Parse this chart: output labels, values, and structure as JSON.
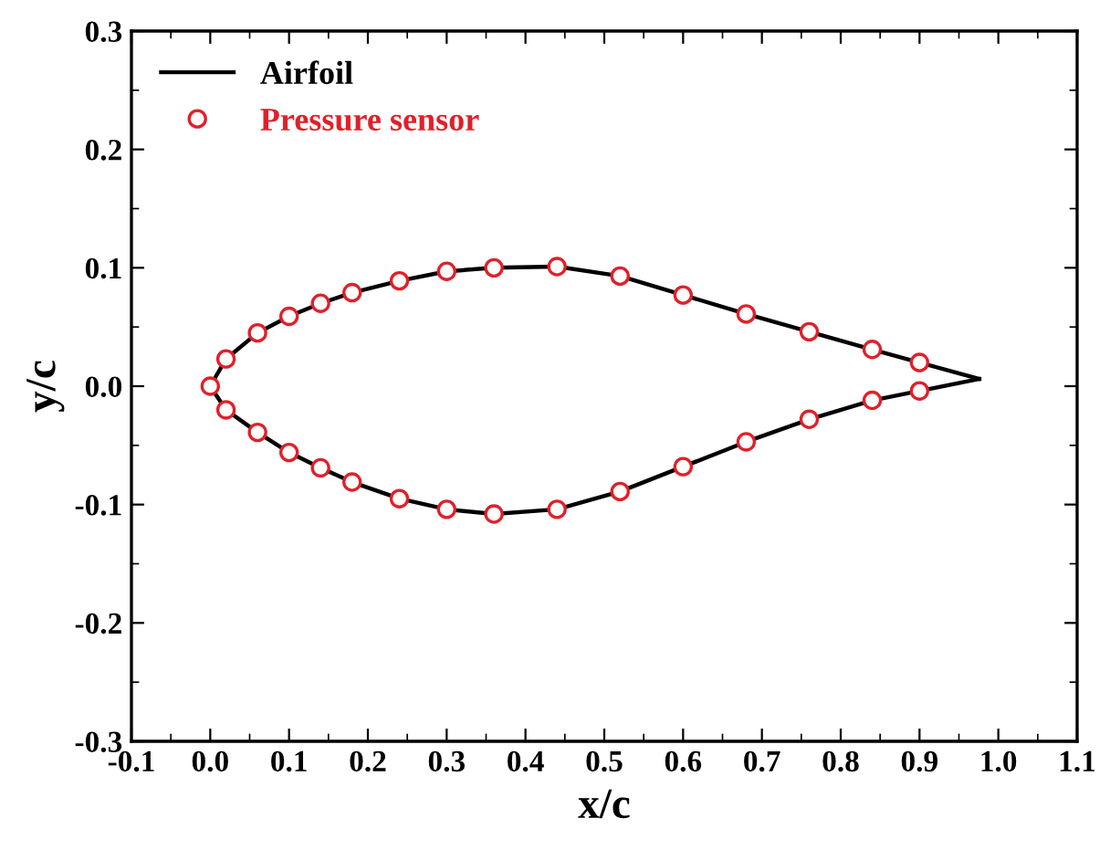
{
  "chart_data": {
    "type": "line",
    "xlabel": "x/c",
    "ylabel": "y/c",
    "legend": "top left",
    "grid": false,
    "xlim": [
      -0.1,
      1.1
    ],
    "ylim": [
      -0.3,
      0.3
    ],
    "xticks": [
      {
        "value": -0.1,
        "label": "-0.1"
      },
      {
        "value": 0,
        "label": "0.0"
      },
      {
        "value": 0.1,
        "label": "0.1"
      },
      {
        "value": 0.2,
        "label": "0.2"
      },
      {
        "value": 0.3,
        "label": "0.3"
      },
      {
        "value": 0.4,
        "label": "0.4"
      },
      {
        "value": 0.5,
        "label": "0.5"
      },
      {
        "value": 0.6,
        "label": "0.6"
      },
      {
        "value": 0.7,
        "label": "0.7"
      },
      {
        "value": 0.8,
        "label": "0.8"
      },
      {
        "value": 0.9,
        "label": "0.9"
      },
      {
        "value": 1.0,
        "label": "1.0"
      },
      {
        "value": 1.1,
        "label": "1.1"
      }
    ],
    "yticks": [
      {
        "value": -0.3,
        "label": "-0.3"
      },
      {
        "value": -0.2,
        "label": "-0.2"
      },
      {
        "value": -0.1,
        "label": "-0.1"
      },
      {
        "value": 0,
        "label": "0.0"
      },
      {
        "value": 0.1,
        "label": "0.1"
      },
      {
        "value": 0.2,
        "label": "0.2"
      },
      {
        "value": 0.3,
        "label": "0.3"
      }
    ],
    "annotations": [
      "Airfoil"
    ],
    "series": [
      {
        "name": "Pressure sensor",
        "type": "scatter",
        "color": "#e0202a",
        "marker": "circle",
        "x": [
          0.0,
          0.02,
          0.06,
          0.1,
          0.14,
          0.18,
          0.24,
          0.3,
          0.36,
          0.44,
          0.52,
          0.6,
          0.68,
          0.76,
          0.84,
          0.9,
          0.02,
          0.06,
          0.1,
          0.14,
          0.18,
          0.24,
          0.3,
          0.36,
          0.44,
          0.52,
          0.6,
          0.68,
          0.76,
          0.84,
          0.9
        ],
        "values": [
          0,
          0.023,
          0.045,
          0.059,
          0.07,
          0.079,
          0.089,
          0.097,
          0.1,
          0.101,
          0.093,
          0.077,
          0.061,
          0.046,
          0.031,
          0.02,
          -0.02,
          -0.039,
          -0.056,
          -0.069,
          -0.081,
          -0.095,
          -0.104,
          -0.108,
          -0.104,
          -0.089,
          -0.068,
          -0.047,
          -0.028,
          -0.012,
          -0.004
        ]
      }
    ]
  }
}
